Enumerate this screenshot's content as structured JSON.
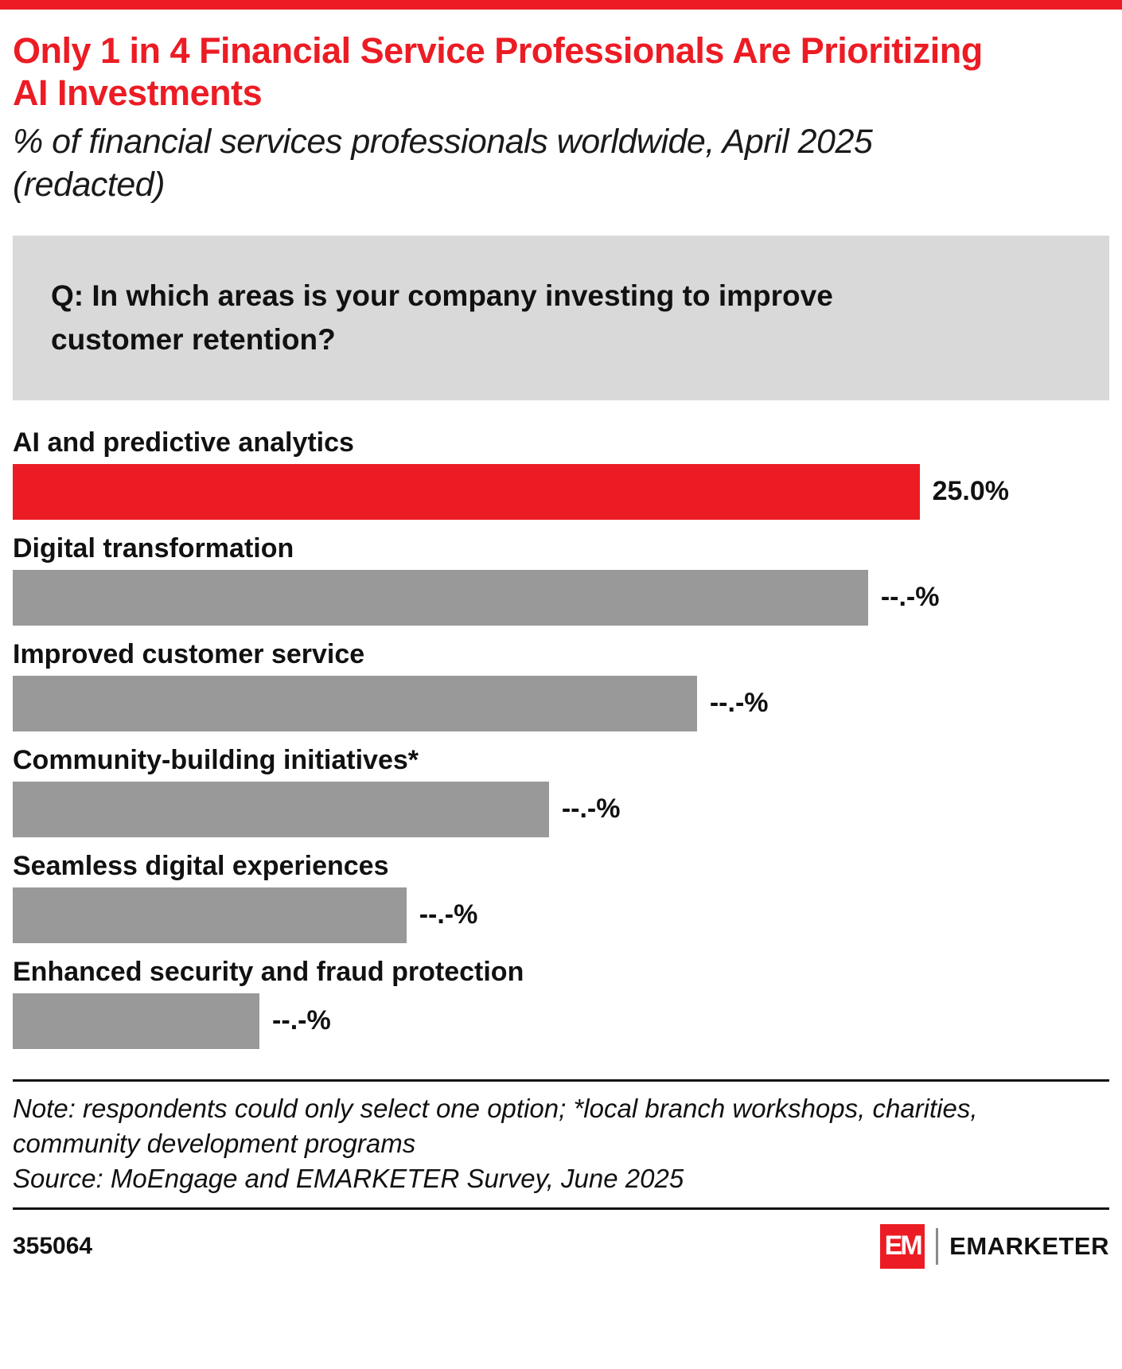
{
  "page": {
    "id_number": "355064",
    "brand": "EMARKETER",
    "logo_text": "EM"
  },
  "header": {
    "title": "Only 1 in 4 Financial Service Professionals Are Prioritizing AI Investments",
    "subtitle": "% of financial services professionals worldwide, April 2025 (redacted)"
  },
  "question": {
    "text": "Q: In which areas is your company investing to improve customer retention?"
  },
  "chart_data": {
    "type": "bar",
    "orientation": "horizontal",
    "title": "Only 1 in 4 Financial Service Professionals Are Prioritizing AI Investments",
    "subtitle": "% of financial services professionals worldwide, April 2025 (redacted)",
    "value_axis": "percent of respondents",
    "grid": false,
    "legend": "none",
    "categories": [
      "AI and predictive analytics",
      "Digital transformation",
      "Improved customer service",
      "Community-building initiatives*",
      "Seamless digital experiences",
      "Enhanced security and fraud protection"
    ],
    "bars": [
      {
        "label": "AI and predictive analytics",
        "value": 25.0,
        "value_label": "25.0%",
        "width_pct": 82.7,
        "color": "#ec1c24",
        "highlighted": true
      },
      {
        "label": "Digital transformation",
        "value": null,
        "value_label": "--.-%",
        "width_pct": 78.0,
        "color": "#999999",
        "highlighted": false
      },
      {
        "label": "Improved customer service",
        "value": null,
        "value_label": "--.-%",
        "width_pct": 62.4,
        "color": "#999999",
        "highlighted": false
      },
      {
        "label": "Community-building initiatives*",
        "value": null,
        "value_label": "--.-%",
        "width_pct": 48.9,
        "color": "#999999",
        "highlighted": false
      },
      {
        "label": "Seamless digital experiences",
        "value": null,
        "value_label": "--.-%",
        "width_pct": 35.9,
        "color": "#999999",
        "highlighted": false
      },
      {
        "label": "Enhanced security and fraud protection",
        "value": null,
        "value_label": "--.-%",
        "width_pct": 22.5,
        "color": "#999999",
        "highlighted": false
      }
    ],
    "redaction_placeholder": "--.-%"
  },
  "footnote": {
    "note": "Note: respondents could only select one option; *local branch workshops, charities, community development programs",
    "source": "Source: MoEngage and EMARKETER Survey, June 2025"
  },
  "colors": {
    "accent_red": "#ec1c24",
    "bar_gray": "#999999",
    "question_bg": "#d9d9d9"
  }
}
